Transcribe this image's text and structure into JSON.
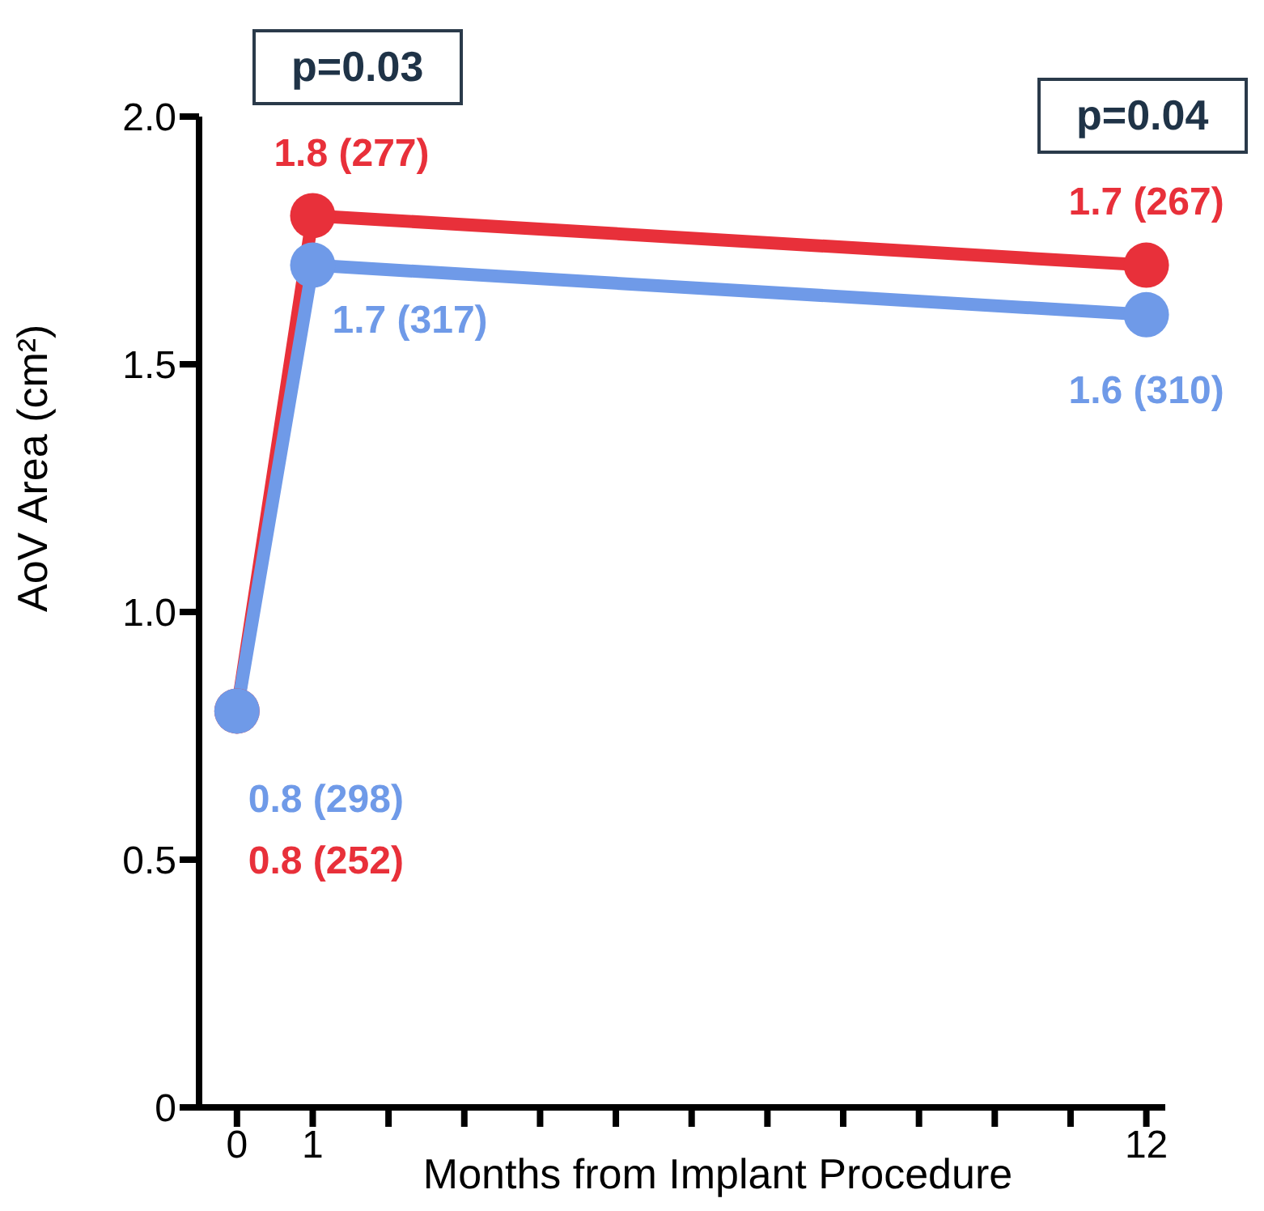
{
  "chart_data": {
    "type": "line",
    "xlabel": "Months from Implant Procedure",
    "ylabel": "AoV Area (cm²)",
    "x": [
      0,
      1,
      12
    ],
    "xlim": [
      -0.5,
      12.25
    ],
    "xticks": [
      0,
      1,
      {
        "value": 2,
        "label": null
      },
      {
        "value": 3,
        "label": null
      },
      {
        "value": 4,
        "label": null
      },
      {
        "value": 5,
        "label": null
      },
      {
        "value": 6,
        "label": null
      },
      {
        "value": 7,
        "label": null
      },
      {
        "value": 8,
        "label": null
      },
      {
        "value": 9,
        "label": null
      },
      {
        "value": 10,
        "label": null
      },
      {
        "value": 11,
        "label": null
      },
      12
    ],
    "ylim": [
      0,
      2.0
    ],
    "yticks": [
      0,
      {
        "value": 0.5,
        "label": "0.5"
      },
      {
        "value": 1,
        "label": "1.0"
      },
      {
        "value": 1.5,
        "label": "1.5"
      },
      {
        "value": 2,
        "label": "2.0"
      }
    ],
    "marker": "circle",
    "line_style": "solid",
    "series": [
      {
        "color": "#e8303a",
        "values": [
          0.8,
          1.8,
          1.7
        ],
        "value_labels": [
          "0.8 (252)",
          "1.8 (277)",
          "1.7 (267)"
        ]
      },
      {
        "color": "#6f9ae8",
        "values": [
          0.8,
          1.7,
          1.6
        ],
        "value_labels": [
          "0.8 (298)",
          "1.7 (317)",
          "1.6 (310)"
        ]
      }
    ],
    "annotations": [
      "p=0.03",
      "p=0.04"
    ]
  }
}
